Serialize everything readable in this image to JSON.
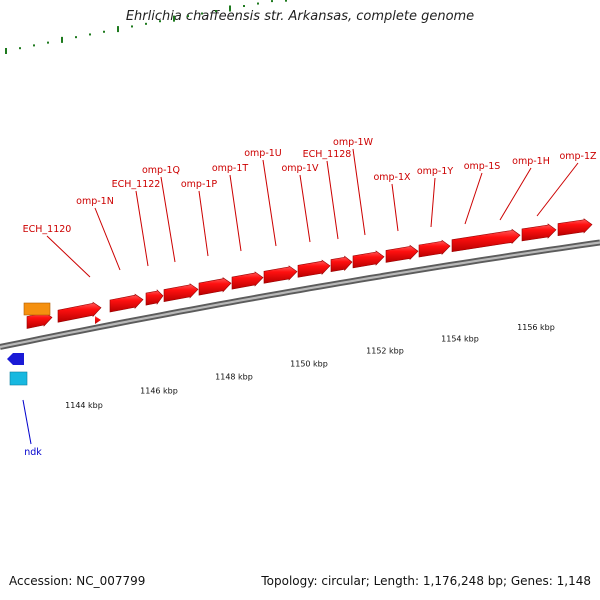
{
  "title": "Ehrlichia chaffeensis str. Arkansas, complete genome",
  "footer": {
    "accession": "Accession: NC_007799",
    "summary": "Topology: circular; Length: 1,176,248 bp; Genes: 1,148"
  },
  "colors": {
    "gene_forward": "#e8000b",
    "label_forward": "#cc0000",
    "label_reverse": "#0000cc",
    "tick": "#1e7a1e",
    "backbone": "#888888",
    "orange_feature": "#f5900f",
    "blue_gene": "#1a1ad6",
    "cyan_gene": "#17b8e0"
  },
  "genes": [
    {
      "name": "ECH_1120"
    },
    {
      "name": "omp-1N"
    },
    {
      "name": "ECH_1122"
    },
    {
      "name": "omp-1Q"
    },
    {
      "name": "omp-1P"
    },
    {
      "name": "omp-1T"
    },
    {
      "name": "omp-1U"
    },
    {
      "name": "omp-1V"
    },
    {
      "name": "ECH_1128"
    },
    {
      "name": "omp-1W"
    },
    {
      "name": "omp-1X"
    },
    {
      "name": "omp-1Y"
    },
    {
      "name": "omp-1S"
    },
    {
      "name": "omp-1H"
    },
    {
      "name": "omp-1Z"
    }
  ],
  "reverse_genes": [
    {
      "name": "ndk"
    }
  ],
  "scale_labels": [
    "1144 kbp",
    "1146 kbp",
    "1148 kbp",
    "1150 kbp",
    "1152 kbp",
    "1154 kbp",
    "1156 kbp"
  ]
}
